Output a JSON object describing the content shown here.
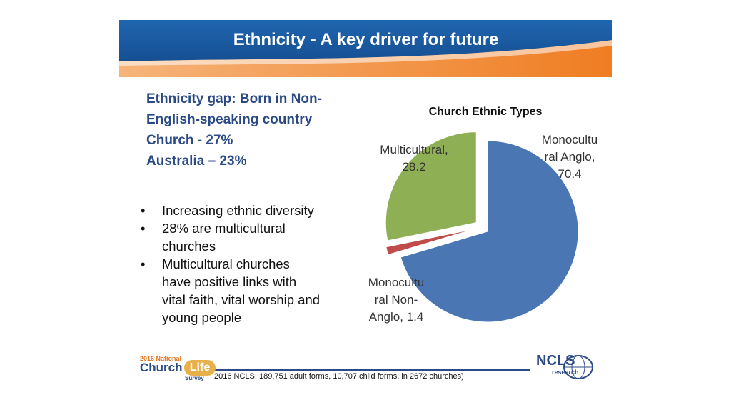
{
  "slide": {
    "title": "Ethnicity - A key driver for future",
    "gap_lines": [
      "Ethnicity gap: Born in Non-",
      "English-speaking country",
      "Church -  27%",
      "Australia – 23%"
    ],
    "bullets": [
      [
        "Increasing ethnic diversity"
      ],
      [
        "28% are multicultural",
        "churches"
      ],
      [
        "Multicultural churches",
        "have positive links with",
        "vital faith, vital worship and",
        "young people"
      ]
    ],
    "footnote": "2016 NCLS: 189,751  adult forms, 10,707 child forms, in 2672 churches)",
    "logo_left": {
      "year": "2016 National",
      "church": "Church",
      "life": "Life",
      "survey": "Survey"
    },
    "logo_right": {
      "ncls": "NCLS",
      "research": "research"
    },
    "colors": {
      "banner_blue": "#1f5fa8",
      "banner_orange": "#ef7d22",
      "text_blue": "#2b4a86"
    }
  },
  "chart_data": {
    "type": "pie",
    "title": "Church Ethnic Types",
    "slices": [
      {
        "label_lines": [
          "Monocultu",
          "ral Anglo,",
          "70.4"
        ],
        "value": 70.4,
        "color": "#4a76b4"
      },
      {
        "label_lines": [
          "Monocultu",
          "ral Non-",
          "Anglo, 1.4"
        ],
        "value": 1.4,
        "color": "#bf4c4a"
      },
      {
        "label_lines": [
          "Multicultural,",
          "28.2"
        ],
        "value": 28.2,
        "color": "#8faf55"
      }
    ],
    "exploded": true,
    "legend": "none"
  }
}
